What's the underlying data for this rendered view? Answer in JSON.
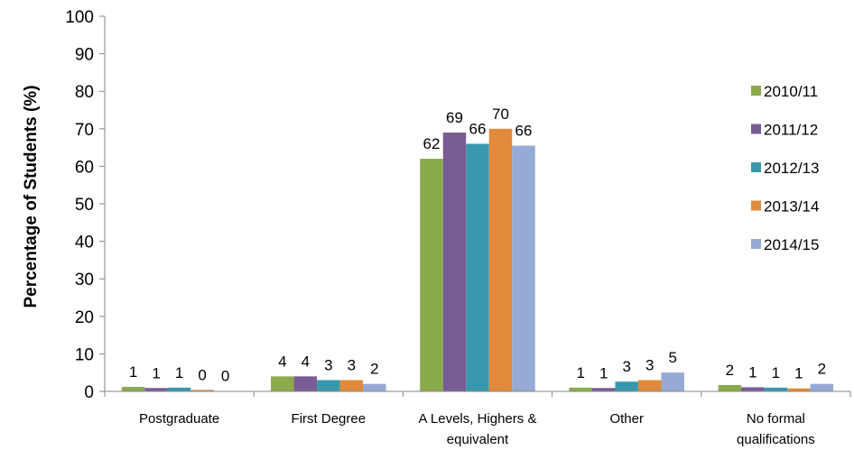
{
  "chart_data": {
    "type": "bar",
    "title": "",
    "xlabel": "",
    "ylabel": "Percentage of Students (%)",
    "ylim": [
      0,
      100
    ],
    "yticks": [
      0,
      10,
      20,
      30,
      40,
      50,
      60,
      70,
      80,
      90,
      100
    ],
    "grid": false,
    "legend_position": "right",
    "categories": [
      [
        "Postgraduate"
      ],
      [
        "First Degree"
      ],
      [
        "A Levels, Highers &",
        "equivalent"
      ],
      [
        "Other"
      ],
      [
        "No formal",
        "qualifications"
      ]
    ],
    "series": [
      {
        "name": "2010/11",
        "color": "#8aaa4c",
        "values": [
          1.2,
          4,
          62,
          1,
          1.7
        ],
        "labels": [
          "1",
          "4",
          "62",
          "1",
          "2"
        ]
      },
      {
        "name": "2011/12",
        "color": "#7a5c94",
        "values": [
          0.9,
          4,
          69,
          0.9,
          1.1
        ],
        "labels": [
          "1",
          "4",
          "69",
          "1",
          "1"
        ]
      },
      {
        "name": "2012/13",
        "color": "#3a98ae",
        "values": [
          1.0,
          3,
          66,
          2.6,
          1.0
        ],
        "labels": [
          "1",
          "3",
          "66",
          "3",
          "1"
        ]
      },
      {
        "name": "2013/14",
        "color": "#e08a3c",
        "values": [
          0.4,
          3,
          70,
          3,
          0.8
        ],
        "labels": [
          "0",
          "3",
          "70",
          "3",
          "1"
        ]
      },
      {
        "name": "2014/15",
        "color": "#95aad4",
        "values": [
          0.1,
          2,
          65.5,
          5,
          2
        ],
        "labels": [
          "0",
          "2",
          "66",
          "5",
          "2"
        ]
      }
    ]
  }
}
